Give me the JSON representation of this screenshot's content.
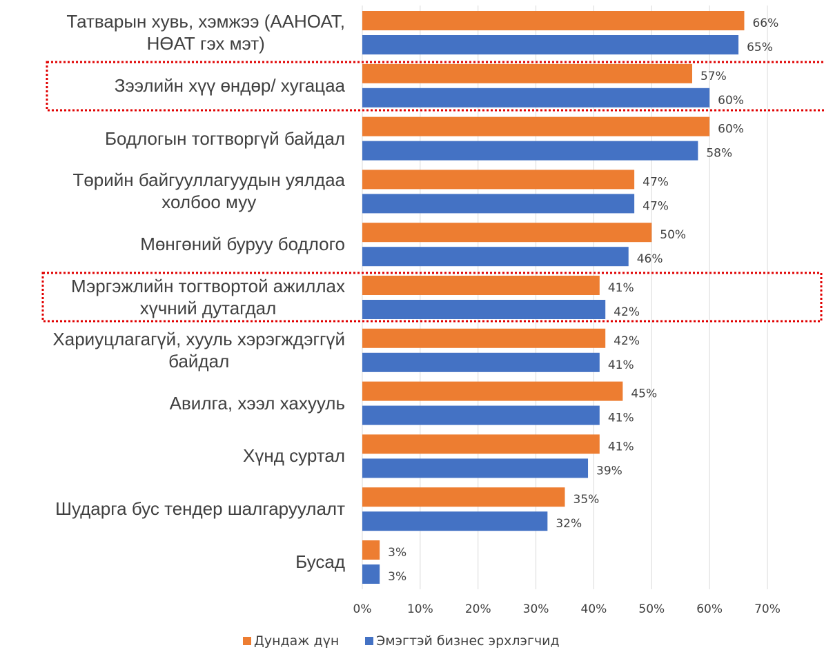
{
  "chart_data": {
    "type": "bar",
    "orientation": "horizontal",
    "categories": [
      "Татварын хувь, хэмжээ (ААНОАТ,\nНӨАТ гэх мэт)",
      "Зээлийн хүү өндөр/ хугацаа",
      "Бодлогын тогтворгүй байдал",
      "Төрийн байгууллагуудын уялдаа\nхолбоо муу",
      "Мөнгөний буруу бодлого",
      "Мэргэжлийн тогтвортой ажиллах\nхүчний дутагдал",
      "Хариуцлагагүй, хууль хэрэгждэггүй\nбайдал",
      "Авилга, хээл хахууль",
      "Хүнд суртал",
      "Шударга бус тендер шалгаруулалт",
      "Бусад"
    ],
    "series": [
      {
        "name": "Дундаж дүн",
        "color": "#ed7d31",
        "values": [
          66,
          57,
          60,
          47,
          50,
          41,
          42,
          45,
          41,
          35,
          3
        ],
        "value_labels": [
          "66%",
          "57%",
          "60%",
          "47%",
          "50%",
          "41%",
          "42%",
          "45%",
          "41%",
          "35%",
          "3%"
        ]
      },
      {
        "name": "Эмэгтэй бизнес эрхлэгчид",
        "color": "#4472c4",
        "values": [
          65,
          60,
          58,
          47,
          46,
          42,
          41,
          41,
          39,
          32,
          3
        ],
        "value_labels": [
          "65%",
          "60%",
          "58%",
          "47%",
          "46%",
          "42%",
          "41%",
          "41%",
          "39%",
          "32%",
          "3%"
        ]
      }
    ],
    "xlim": [
      0,
      70
    ],
    "xticks": [
      {
        "value": 0,
        "label": "0%"
      },
      {
        "value": 10,
        "label": "10%"
      },
      {
        "value": 20,
        "label": "20%"
      },
      {
        "value": 30,
        "label": "30%"
      },
      {
        "value": 40,
        "label": "40%"
      },
      {
        "value": 50,
        "label": "50%"
      },
      {
        "value": 60,
        "label": "60%"
      },
      {
        "value": 70,
        "label": "70%"
      }
    ],
    "grid": true,
    "legend": "bottom"
  }
}
